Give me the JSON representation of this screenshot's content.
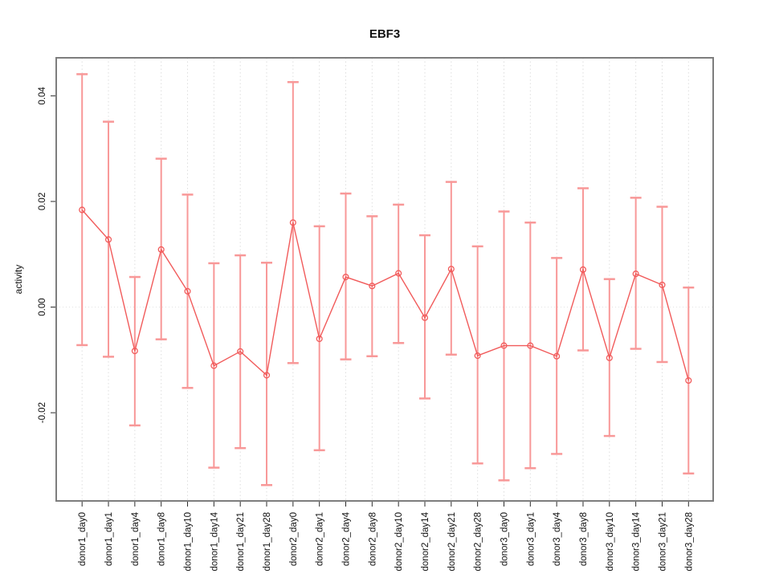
{
  "window": {
    "background": "#ffffff"
  },
  "chart_data": {
    "type": "line",
    "title": "EBF3",
    "xlabel": "",
    "ylabel": "activity",
    "legend": "none",
    "marker": "open-circle",
    "error_bars": true,
    "grid": {
      "vertical_dashed_at_each_category": true,
      "horizontal_dotted_zero_line": true
    },
    "categories": [
      "donor1_day0",
      "donor1_day1",
      "donor1_day4",
      "donor1_day8",
      "donor1_day10",
      "donor1_day14",
      "donor1_day21",
      "donor1_day28",
      "donor2_day0",
      "donor2_day1",
      "donor2_day4",
      "donor2_day8",
      "donor2_day10",
      "donor2_day14",
      "donor2_day21",
      "donor2_day28",
      "donor3_day0",
      "donor3_day1",
      "donor3_day4",
      "donor3_day8",
      "donor3_day10",
      "donor3_day14",
      "donor3_day21",
      "donor3_day28"
    ],
    "series": [
      {
        "name": "mean",
        "values": [
          0.0184,
          0.0128,
          -0.0083,
          0.0109,
          0.003,
          -0.0111,
          -0.0084,
          -0.0129,
          0.016,
          -0.006,
          0.0057,
          0.004,
          0.0064,
          -0.002,
          0.0072,
          -0.0092,
          -0.0073,
          -0.0073,
          -0.0093,
          0.0071,
          -0.0096,
          0.0063,
          0.0042,
          -0.0139
        ]
      },
      {
        "name": "upper_error",
        "values": [
          0.0441,
          0.0351,
          0.0057,
          0.0281,
          0.0213,
          0.0083,
          0.0098,
          0.0084,
          0.0426,
          0.0153,
          0.0215,
          0.0172,
          0.0194,
          0.0136,
          0.0237,
          0.0115,
          0.0181,
          0.016,
          0.0093,
          0.0225,
          0.0053,
          0.0207,
          0.019,
          0.0037
        ]
      },
      {
        "name": "lower_error",
        "values": [
          -0.0072,
          -0.0094,
          -0.0224,
          -0.0061,
          -0.0153,
          -0.0304,
          -0.0267,
          -0.0337,
          -0.0106,
          -0.0271,
          -0.0099,
          -0.0093,
          -0.0068,
          -0.0173,
          -0.009,
          -0.0296,
          -0.0328,
          -0.0305,
          -0.0278,
          -0.0082,
          -0.0244,
          -0.0079,
          -0.0104,
          -0.0315
        ]
      }
    ],
    "ylim": [
      -0.0367,
      0.0472
    ],
    "yticks": [
      "0.04",
      "0.02",
      "0.00",
      "-0.02"
    ],
    "ytick_values": [
      0.04,
      0.02,
      0.0,
      -0.02
    ],
    "colors": {
      "point": "#f15b5b",
      "line": "#f15b5b",
      "error_bar": "#f89898",
      "gridline": "#dedede",
      "zero_line": "#e3e3e3",
      "box_border": "#7d7d7d",
      "tick": "#2b2b2b",
      "text": "#111111"
    }
  }
}
